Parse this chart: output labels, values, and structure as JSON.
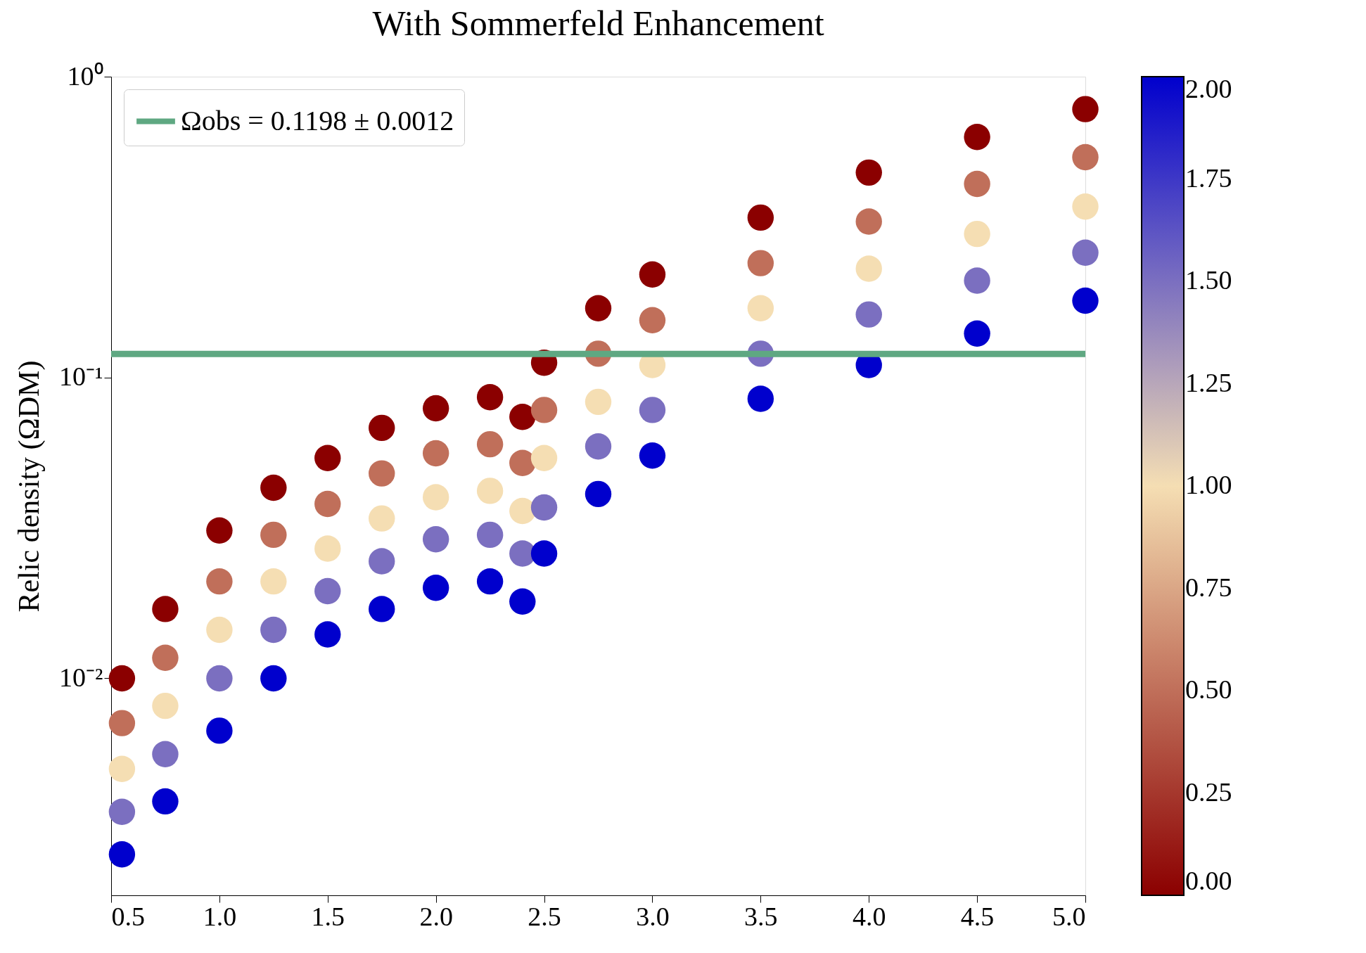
{
  "chart_data": {
    "type": "scatter",
    "title": "With Sommerfeld Enhancement",
    "ylabel": "Relic density (ΩDM)",
    "x": [
      0.55,
      0.55,
      0.55,
      0.55,
      0.55,
      0.75,
      0.75,
      0.75,
      0.75,
      0.75,
      1.0,
      1.0,
      1.0,
      1.0,
      1.0,
      1.25,
      1.25,
      1.25,
      1.25,
      1.25,
      1.5,
      1.5,
      1.5,
      1.5,
      1.5,
      1.75,
      1.75,
      1.75,
      1.75,
      1.75,
      2.0,
      2.0,
      2.0,
      2.0,
      2.0,
      2.25,
      2.25,
      2.25,
      2.25,
      2.25,
      2.4,
      2.4,
      2.4,
      2.4,
      2.4,
      2.5,
      2.5,
      2.5,
      2.5,
      2.5,
      2.75,
      2.75,
      2.75,
      2.75,
      2.75,
      3.0,
      3.0,
      3.0,
      3.0,
      3.0,
      3.5,
      3.5,
      3.5,
      3.5,
      3.5,
      4.0,
      4.0,
      4.0,
      4.0,
      4.0,
      4.5,
      4.5,
      4.5,
      4.5,
      4.5,
      5.0,
      5.0,
      5.0,
      5.0,
      5.0
    ],
    "values": [
      0.01,
      0.0071,
      0.005,
      0.0036,
      0.0026,
      0.017,
      0.0117,
      0.0081,
      0.0056,
      0.0039,
      0.031,
      0.021,
      0.0145,
      0.01,
      0.0067,
      0.043,
      0.03,
      0.021,
      0.0145,
      0.01,
      0.054,
      0.038,
      0.027,
      0.0195,
      0.014,
      0.068,
      0.048,
      0.034,
      0.0245,
      0.017,
      0.079,
      0.056,
      0.04,
      0.029,
      0.02,
      0.086,
      0.06,
      0.042,
      0.03,
      0.021,
      0.074,
      0.052,
      0.036,
      0.026,
      0.018,
      0.112,
      0.078,
      0.054,
      0.037,
      0.026,
      0.17,
      0.12,
      0.083,
      0.059,
      0.041,
      0.22,
      0.155,
      0.11,
      0.078,
      0.055,
      0.34,
      0.24,
      0.17,
      0.12,
      0.085,
      0.48,
      0.33,
      0.23,
      0.162,
      0.11,
      0.63,
      0.44,
      0.3,
      0.21,
      0.14,
      0.78,
      0.54,
      0.37,
      0.26,
      0.18
    ],
    "cvalues": [
      0,
      0.5,
      1,
      1.5,
      2,
      0,
      0.5,
      1,
      1.5,
      2,
      0,
      0.5,
      1,
      1.5,
      2,
      0,
      0.5,
      1,
      1.5,
      2,
      0,
      0.5,
      1,
      1.5,
      2,
      0,
      0.5,
      1,
      1.5,
      2,
      0,
      0.5,
      1,
      1.5,
      2,
      0,
      0.5,
      1,
      1.5,
      2,
      0,
      0.5,
      1,
      1.5,
      2,
      0,
      0.5,
      1,
      1.5,
      2,
      0,
      0.5,
      1,
      1.5,
      2,
      0,
      0.5,
      1,
      1.5,
      2,
      0,
      0.5,
      1,
      1.5,
      2,
      0,
      0.5,
      1,
      1.5,
      2,
      0,
      0.5,
      1,
      1.5,
      2,
      0,
      0.5,
      1,
      1.5,
      2
    ],
    "xlim": [
      0.5,
      5.0
    ],
    "xticks": [
      0.5,
      {
        "value": 1,
        "label": "1.0"
      },
      1.5,
      {
        "value": 2,
        "label": "2.0"
      },
      2.5,
      {
        "value": 3,
        "label": "3.0"
      },
      3.5,
      {
        "value": 4,
        "label": "4.0"
      },
      4.5,
      {
        "value": 5,
        "label": "5.0"
      }
    ],
    "ylim": [
      0.0019,
      1
    ],
    "log": true,
    "yticks": [
      {
        "value": 0.01,
        "label": "10⁻²"
      },
      {
        "value": 0.1,
        "label": "10⁻¹"
      },
      {
        "value": 1,
        "label": "10⁰"
      }
    ],
    "clim": [
      0,
      2
    ],
    "cticks": [
      {
        "value": 0,
        "label": "0.00"
      },
      {
        "value": 0.25,
        "label": "0.25"
      },
      {
        "value": 0.5,
        "label": "0.50"
      },
      {
        "value": 0.75,
        "label": "0.75"
      },
      {
        "value": 1,
        "label": "1.00"
      },
      {
        "value": 1.25,
        "label": "1.25"
      },
      {
        "value": 1.5,
        "label": "1.50"
      },
      {
        "value": 1.75,
        "label": "1.75"
      },
      {
        "value": 2,
        "label": "2.00"
      }
    ],
    "ref_lines": [
      {
        "axis": "y",
        "value": 0.1198,
        "label": "Ωobs = 0.1198 ± 0.0012",
        "color": "#5fa882"
      }
    ],
    "legend": "top left",
    "grid": false
  }
}
